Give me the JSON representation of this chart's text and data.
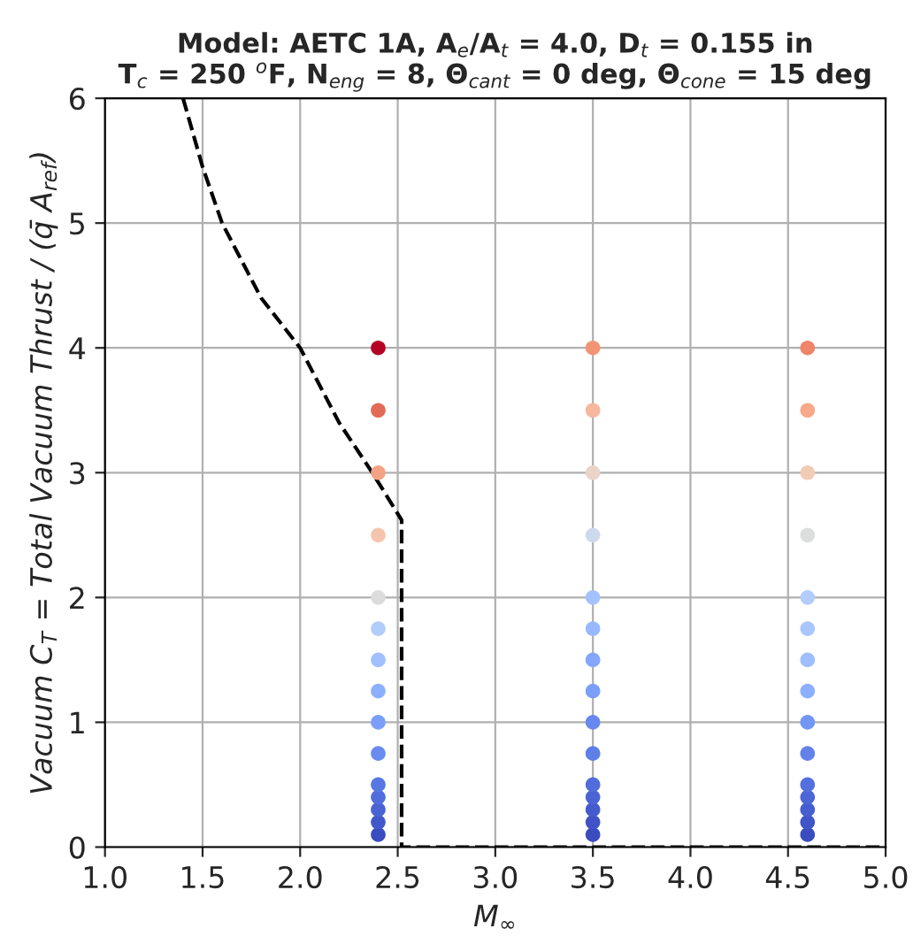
{
  "chart_data": {
    "type": "scatter",
    "title": "Model: AETC 1A, A$_{e}$/A$_{t}$ = 4.0, D$_{t}$ = 0.155 in\nT$_{c}$ = 250 $^{o}$F, N$_{eng}$ = 8, Θ$_{cant}$ = 0 deg, Θ$_{cone}$ = 15 deg",
    "xlabel": "M$_{∞}$",
    "ylabel": "Vacuum C$_{T}$ = Total Vacuum Thrust / (q̄ A$_{ref}$)",
    "xlim": [
      1.0,
      5.0
    ],
    "ylim": [
      0,
      6
    ],
    "xticks": [
      {
        "value": 1.0,
        "label": "1.0"
      },
      {
        "value": 1.5,
        "label": "1.5"
      },
      {
        "value": 2.0,
        "label": "2.0"
      },
      {
        "value": 2.5,
        "label": "2.5"
      },
      {
        "value": 3.0,
        "label": "3.0"
      },
      {
        "value": 3.5,
        "label": "3.5"
      },
      {
        "value": 4.0,
        "label": "4.0"
      },
      {
        "value": 4.5,
        "label": "4.5"
      },
      {
        "value": 5.0,
        "label": "5.0"
      }
    ],
    "yticks": [
      0,
      1,
      2,
      3,
      4,
      5,
      6
    ],
    "grid": true,
    "series": [
      {
        "marker": "circle",
        "x": [
          2.4,
          2.4,
          2.4,
          2.4,
          2.4,
          2.4,
          2.4,
          2.4,
          2.4,
          2.4,
          2.4,
          2.4,
          2.4,
          2.4,
          2.4
        ],
        "values": [
          0.1,
          0.2,
          0.3,
          0.4,
          0.5,
          0.75,
          1.0,
          1.25,
          1.5,
          1.75,
          2.0,
          2.5,
          3.0,
          3.5,
          4.0
        ],
        "colors": [
          "#3b4cc0",
          "#4257c9",
          "#4a63d3",
          "#516ddb",
          "#5977e3",
          "#6a8bef",
          "#7b9ff9",
          "#8db0fe",
          "#a1c0ff",
          "#b3cdfb",
          "#dddcdc",
          "#f4c5ad",
          "#f2a384",
          "#e36b55",
          "#b40426"
        ]
      },
      {
        "marker": "circle",
        "x": [
          3.5,
          3.5,
          3.5,
          3.5,
          3.5,
          3.5,
          3.5,
          3.5,
          3.5,
          3.5,
          3.5,
          3.5,
          3.5,
          3.5,
          3.5
        ],
        "values": [
          0.1,
          0.2,
          0.3,
          0.4,
          0.5,
          0.75,
          1.0,
          1.25,
          1.5,
          1.75,
          2.0,
          2.5,
          3.0,
          3.5,
          4.0
        ],
        "colors": [
          "#3b4cc0",
          "#3f53c6",
          "#455cce",
          "#4b64d5",
          "#516ddb",
          "#5f7fe8",
          "#6788ee",
          "#7b9ff9",
          "#84a7fc",
          "#98b9ff",
          "#a3c2fe",
          "#cdd9ec",
          "#ead4c8",
          "#f5b79d",
          "#f39475"
        ]
      },
      {
        "marker": "circle",
        "x": [
          4.6,
          4.6,
          4.6,
          4.6,
          4.6,
          4.6,
          4.6,
          4.6,
          4.6,
          4.6,
          4.6,
          4.6,
          4.6,
          4.6,
          4.6
        ],
        "values": [
          0.1,
          0.2,
          0.3,
          0.4,
          0.5,
          0.75,
          1.0,
          1.25,
          1.5,
          1.75,
          2.0,
          2.5,
          3.0,
          3.5,
          4.0
        ],
        "colors": [
          "#3b4cc0",
          "#4055c8",
          "#465ecf",
          "#4c66d6",
          "#5470de",
          "#6282ea",
          "#7396f5",
          "#8caffe",
          "#9ebeff",
          "#aac7fd",
          "#b3cdfb",
          "#dcdddd",
          "#f2cbb7",
          "#f7a889",
          "#ee8468"
        ]
      },
      {
        "type": "line",
        "marker": "none",
        "color": "#000000",
        "line_style": "dashed",
        "x": [
          1.4,
          1.5,
          1.6,
          1.8,
          2.0,
          2.2,
          2.37,
          2.52,
          2.52,
          5.0
        ],
        "values": [
          6.0,
          5.45,
          5.0,
          4.4,
          4.0,
          3.4,
          3.0,
          2.62,
          0.0,
          0.0
        ]
      }
    ]
  }
}
